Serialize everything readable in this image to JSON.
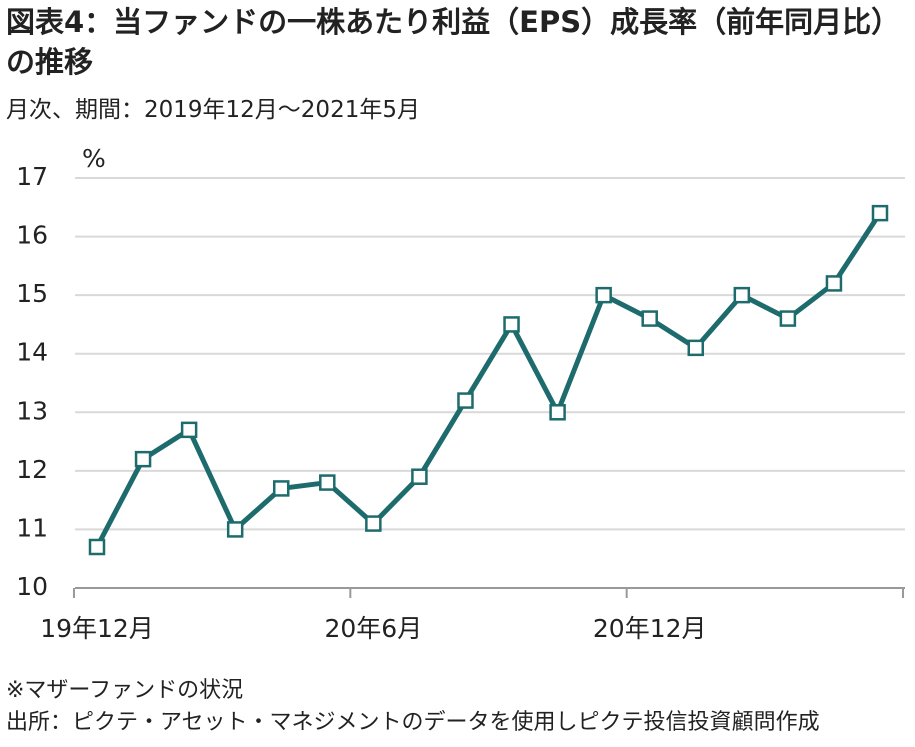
{
  "chart_data": {
    "type": "line",
    "title": "図表4：当ファンドの一株あたり利益（EPS）成長率（前年同月比）の推移",
    "subtitle": "月次、期間：2019年12月～2021年5月",
    "y_label": "%",
    "notes": [
      "※マザーファンドの状況",
      "出所：ピクテ・アセット・マネジメントのデータを使用しピクテ投信投資顧問作成"
    ],
    "categories": [
      "19年12月",
      null,
      null,
      null,
      null,
      null,
      "20年6月",
      null,
      null,
      null,
      null,
      null,
      "20年12月",
      null,
      null,
      null,
      null,
      null
    ],
    "series": [
      {
        "color": "#1d6b6c",
        "values": [
          10.7,
          12.2,
          12.7,
          11.0,
          11.7,
          11.8,
          11.1,
          11.9,
          13.2,
          14.5,
          13.0,
          15.0,
          14.6,
          14.1,
          15.0,
          14.6,
          15.2,
          16.4
        ]
      }
    ],
    "ylim": [
      10,
      17
    ],
    "yticks": [
      10,
      11,
      12,
      13,
      14,
      15,
      16,
      17
    ],
    "grid": true
  }
}
